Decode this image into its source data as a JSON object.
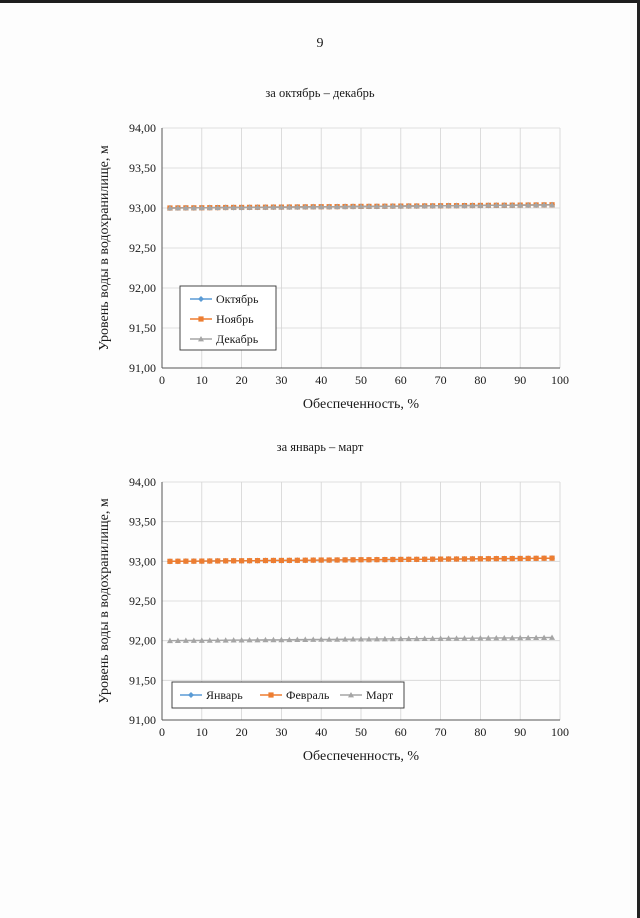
{
  "page": {
    "number": "9"
  },
  "chart_data": [
    {
      "type": "line",
      "title": "за октябрь – декабрь",
      "xlabel": "Обеспеченность, %",
      "ylabel": "Уровень воды в водохранилище, м",
      "xlim": [
        0,
        100
      ],
      "ylim": [
        91.0,
        94.0
      ],
      "xticks": [
        "0",
        "10",
        "20",
        "30",
        "40",
        "50",
        "60",
        "70",
        "80",
        "90",
        "100"
      ],
      "yticks": [
        "91,00",
        "91,50",
        "92,00",
        "92,50",
        "93,00",
        "93,50",
        "94,00"
      ],
      "grid": true,
      "legend": "bottom-left, vertical",
      "x": [
        2,
        4,
        6,
        8,
        10,
        12,
        14,
        16,
        18,
        20,
        22,
        24,
        26,
        28,
        30,
        32,
        34,
        36,
        38,
        40,
        42,
        44,
        46,
        48,
        50,
        52,
        54,
        56,
        58,
        60,
        62,
        64,
        66,
        68,
        70,
        72,
        74,
        76,
        78,
        80,
        82,
        84,
        86,
        88,
        90,
        92,
        94,
        96,
        98
      ],
      "series": [
        {
          "name": "Октябрь",
          "color": "#5b9bd5",
          "marker": "diamond",
          "values": [
            93.0,
            93.001,
            93.002,
            93.002,
            93.003,
            93.004,
            93.005,
            93.006,
            93.007,
            93.007,
            93.008,
            93.009,
            93.01,
            93.011,
            93.011,
            93.012,
            93.013,
            93.014,
            93.015,
            93.016,
            93.016,
            93.017,
            93.018,
            93.019,
            93.02,
            93.02,
            93.021,
            93.022,
            93.023,
            93.024,
            93.025,
            93.025,
            93.026,
            93.027,
            93.028,
            93.029,
            93.029,
            93.03,
            93.031,
            93.032,
            93.033,
            93.034,
            93.034,
            93.035,
            93.036,
            93.037,
            93.038,
            93.039,
            93.04
          ]
        },
        {
          "name": "Ноябрь",
          "color": "#ed7d31",
          "marker": "square",
          "values": [
            93.0,
            93.001,
            93.002,
            93.002,
            93.003,
            93.004,
            93.005,
            93.006,
            93.007,
            93.007,
            93.008,
            93.009,
            93.01,
            93.011,
            93.011,
            93.012,
            93.013,
            93.014,
            93.015,
            93.016,
            93.016,
            93.017,
            93.018,
            93.019,
            93.02,
            93.02,
            93.021,
            93.022,
            93.023,
            93.024,
            93.025,
            93.025,
            93.026,
            93.027,
            93.028,
            93.029,
            93.029,
            93.03,
            93.031,
            93.032,
            93.033,
            93.034,
            93.034,
            93.035,
            93.036,
            93.037,
            93.038,
            93.039,
            93.04
          ]
        },
        {
          "name": "Декабрь",
          "color": "#a5a5a5",
          "marker": "triangle",
          "values": [
            93.0,
            93.001,
            93.002,
            93.002,
            93.003,
            93.004,
            93.005,
            93.006,
            93.007,
            93.007,
            93.008,
            93.009,
            93.01,
            93.011,
            93.011,
            93.012,
            93.013,
            93.014,
            93.015,
            93.016,
            93.016,
            93.017,
            93.018,
            93.019,
            93.02,
            93.02,
            93.021,
            93.022,
            93.023,
            93.024,
            93.025,
            93.025,
            93.026,
            93.027,
            93.028,
            93.029,
            93.029,
            93.03,
            93.031,
            93.032,
            93.033,
            93.034,
            93.034,
            93.035,
            93.036,
            93.037,
            93.038,
            93.039,
            93.04
          ]
        }
      ]
    },
    {
      "type": "line",
      "title": "за январь – март",
      "xlabel": "Обеспеченность, %",
      "ylabel": "Уровень воды в водохранилище, м",
      "xlim": [
        0,
        100
      ],
      "ylim": [
        91.0,
        94.0
      ],
      "xticks": [
        "0",
        "10",
        "20",
        "30",
        "40",
        "50",
        "60",
        "70",
        "80",
        "90",
        "100"
      ],
      "yticks": [
        "91,00",
        "91,50",
        "92,00",
        "92,50",
        "93,00",
        "93,50",
        "94,00"
      ],
      "grid": true,
      "legend": "bottom-left, horizontal",
      "x": [
        2,
        4,
        6,
        8,
        10,
        12,
        14,
        16,
        18,
        20,
        22,
        24,
        26,
        28,
        30,
        32,
        34,
        36,
        38,
        40,
        42,
        44,
        46,
        48,
        50,
        52,
        54,
        56,
        58,
        60,
        62,
        64,
        66,
        68,
        70,
        72,
        74,
        76,
        78,
        80,
        82,
        84,
        86,
        88,
        90,
        92,
        94,
        96,
        98
      ],
      "series": [
        {
          "name": "Январь",
          "color": "#5b9bd5",
          "marker": "diamond",
          "values": [
            93.0,
            93.001,
            93.002,
            93.002,
            93.003,
            93.004,
            93.005,
            93.006,
            93.007,
            93.007,
            93.008,
            93.009,
            93.01,
            93.011,
            93.011,
            93.012,
            93.013,
            93.014,
            93.015,
            93.016,
            93.016,
            93.017,
            93.018,
            93.019,
            93.02,
            93.02,
            93.021,
            93.022,
            93.023,
            93.024,
            93.025,
            93.025,
            93.026,
            93.027,
            93.028,
            93.029,
            93.029,
            93.03,
            93.031,
            93.032,
            93.033,
            93.034,
            93.034,
            93.035,
            93.036,
            93.037,
            93.038,
            93.039,
            93.04
          ]
        },
        {
          "name": "Февраль",
          "color": "#ed7d31",
          "marker": "square",
          "values": [
            93.0,
            93.001,
            93.002,
            93.002,
            93.003,
            93.004,
            93.005,
            93.006,
            93.007,
            93.007,
            93.008,
            93.009,
            93.01,
            93.011,
            93.011,
            93.012,
            93.013,
            93.014,
            93.015,
            93.016,
            93.016,
            93.017,
            93.018,
            93.019,
            93.02,
            93.02,
            93.021,
            93.022,
            93.023,
            93.024,
            93.025,
            93.025,
            93.026,
            93.027,
            93.028,
            93.029,
            93.029,
            93.03,
            93.031,
            93.032,
            93.033,
            93.034,
            93.034,
            93.035,
            93.036,
            93.037,
            93.038,
            93.039,
            93.04
          ]
        },
        {
          "name": "Март",
          "color": "#a5a5a5",
          "marker": "triangle",
          "values": [
            92.0,
            92.001,
            92.002,
            92.002,
            92.003,
            92.004,
            92.005,
            92.006,
            92.007,
            92.007,
            92.008,
            92.009,
            92.01,
            92.011,
            92.011,
            92.012,
            92.013,
            92.014,
            92.015,
            92.016,
            92.016,
            92.017,
            92.018,
            92.019,
            92.02,
            92.02,
            92.021,
            92.022,
            92.023,
            92.024,
            92.025,
            92.025,
            92.026,
            92.027,
            92.028,
            92.029,
            92.029,
            92.03,
            92.031,
            92.032,
            92.033,
            92.034,
            92.034,
            92.035,
            92.036,
            92.037,
            92.038,
            92.039,
            92.04
          ]
        }
      ]
    }
  ]
}
